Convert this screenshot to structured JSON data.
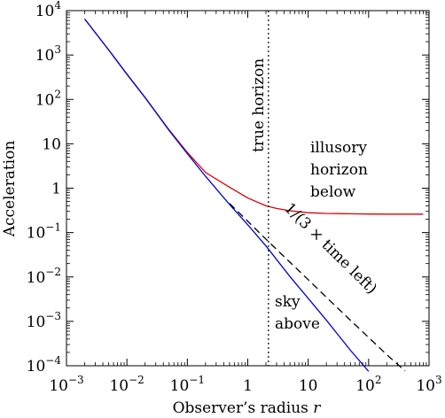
{
  "chart_data": {
    "type": "line",
    "xlabel_main": "Observer’s radius ",
    "xlabel_var": "r",
    "ylabel": "Acceleration",
    "x_scale": "log",
    "y_scale": "log",
    "xlim": [
      0.001,
      1000
    ],
    "ylim": [
      0.0001,
      10000
    ],
    "grid": false,
    "x_ticks": [
      {
        "value": 0.001,
        "base": "10",
        "exp": "−3",
        "plain": ""
      },
      {
        "value": 0.01,
        "base": "10",
        "exp": "−2",
        "plain": ""
      },
      {
        "value": 0.1,
        "base": "10",
        "exp": "−1",
        "plain": ""
      },
      {
        "value": 1,
        "base": "",
        "exp": "",
        "plain": "1"
      },
      {
        "value": 10,
        "base": "",
        "exp": "",
        "plain": "10"
      },
      {
        "value": 100,
        "base": "10",
        "exp": "2",
        "plain": ""
      },
      {
        "value": 1000,
        "base": "10",
        "exp": "3",
        "plain": ""
      }
    ],
    "y_ticks": [
      {
        "value": 0.0001,
        "base": "10",
        "exp": "−4",
        "plain": ""
      },
      {
        "value": 0.001,
        "base": "10",
        "exp": "−3",
        "plain": ""
      },
      {
        "value": 0.01,
        "base": "10",
        "exp": "−2",
        "plain": ""
      },
      {
        "value": 0.1,
        "base": "10",
        "exp": "−1",
        "plain": ""
      },
      {
        "value": 1,
        "base": "",
        "exp": "",
        "plain": "1"
      },
      {
        "value": 10,
        "base": "",
        "exp": "",
        "plain": "10"
      },
      {
        "value": 100,
        "base": "10",
        "exp": "2",
        "plain": ""
      },
      {
        "value": 1000,
        "base": "10",
        "exp": "3",
        "plain": ""
      },
      {
        "value": 10000,
        "base": "10",
        "exp": "4",
        "plain": ""
      }
    ],
    "series": [
      {
        "color": "#e00000",
        "dash": "solid",
        "x": [
          0.002,
          0.005,
          0.01,
          0.02,
          0.05,
          0.1,
          0.2,
          0.5,
          1,
          2,
          3,
          5,
          10,
          20,
          50,
          100,
          200,
          500,
          800
        ],
        "y": [
          6500,
          1300,
          370,
          110,
          20.5,
          6.4,
          2.25,
          1.05,
          0.6,
          0.4,
          0.35,
          0.31,
          0.28,
          0.27,
          0.265,
          0.262,
          0.26,
          0.26,
          0.26
        ]
      },
      {
        "color": "#0000dd",
        "dash": "solid",
        "x": [
          0.002,
          0.005,
          0.01,
          0.02,
          0.05,
          0.1,
          0.2,
          0.5,
          1,
          2,
          5,
          10,
          20,
          50,
          100
        ],
        "y": [
          6500,
          1300,
          370,
          110,
          20,
          6,
          1.85,
          0.43,
          0.15,
          0.05,
          0.0102,
          0.0033,
          0.00106,
          0.000223,
          7.5e-05
        ]
      },
      {
        "color": "#000000",
        "dash": "dashed",
        "x": [
          0.5,
          1,
          2,
          5,
          10,
          20,
          50,
          100,
          200,
          400
        ],
        "y": [
          0.45,
          0.18,
          0.071,
          0.0215,
          0.0087,
          0.00348,
          0.00106,
          0.000434,
          0.000177,
          7.65e-05
        ]
      }
    ],
    "vline": {
      "x": 2.2,
      "style": "dotted",
      "label": "true horizon"
    },
    "annotations": {
      "illusory": [
        "illusory",
        "horizon",
        "below"
      ],
      "sky": [
        "sky",
        "above"
      ],
      "dashed_label": "1/(3 × time left)"
    },
    "colors": {
      "red": "#e00000",
      "blue": "#0000dd",
      "black": "#000000"
    }
  }
}
